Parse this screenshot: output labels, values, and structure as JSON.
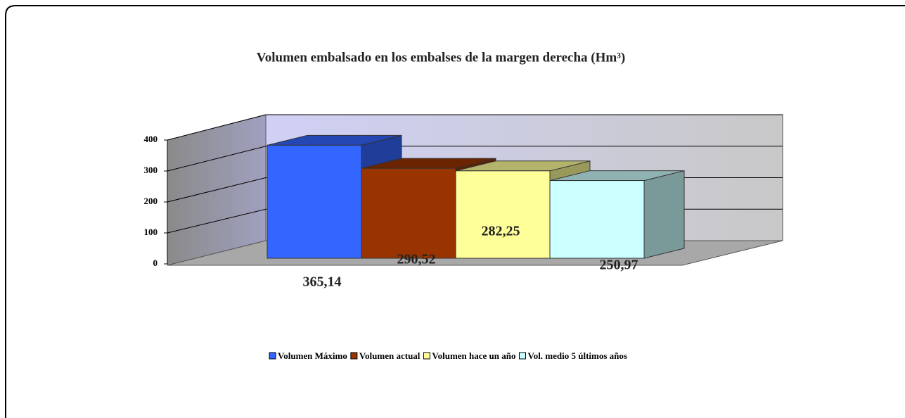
{
  "chart_data": {
    "type": "bar3d",
    "title": "Volumen embalsado en los embalses de la margen derecha (Hm³)",
    "series": [
      {
        "name": "Volumen Máximo",
        "color": "#3366ff",
        "values": [
          365.14
        ],
        "value_labels": [
          "365,14"
        ]
      },
      {
        "name": "Volumen actual",
        "color": "#993300",
        "values": [
          290.52
        ],
        "value_labels": [
          "290,52"
        ]
      },
      {
        "name": "Volumen hace un año",
        "color": "#ffff99",
        "values": [
          282.25
        ],
        "value_labels": [
          "282,25"
        ]
      },
      {
        "name": "Vol. medio 5 últimos años",
        "color": "#ccffff",
        "values": [
          250.97
        ],
        "value_labels": [
          "250,97"
        ]
      }
    ],
    "ylim": [
      0,
      400
    ],
    "yticks": [
      0,
      100,
      200,
      300,
      400
    ],
    "grid": true,
    "legend": "bottom"
  }
}
